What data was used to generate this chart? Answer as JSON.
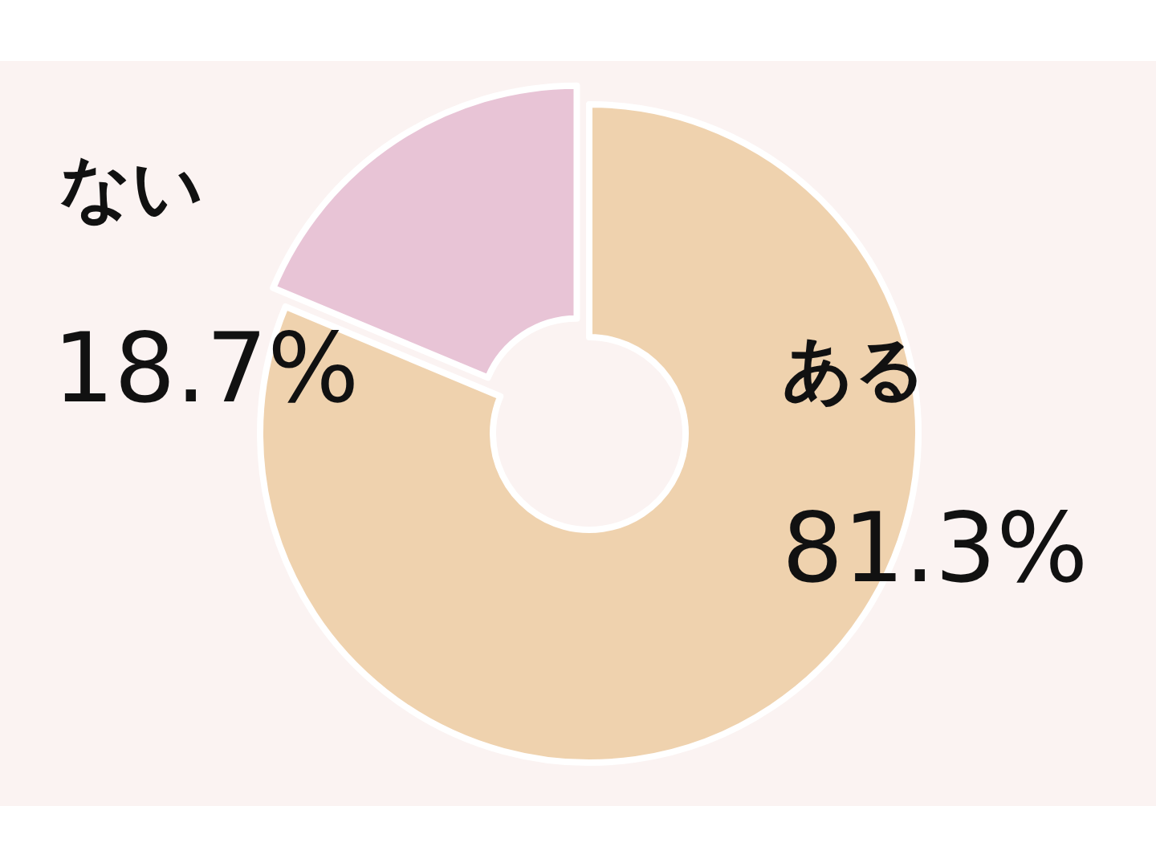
{
  "chart_data": {
    "type": "donut",
    "categories": [
      "ある",
      "ない"
    ],
    "values": [
      81.3,
      18.7
    ],
    "colors": [
      "#efd2ae",
      "#e8c4d6"
    ],
    "value_labels": [
      "81.3%",
      "18.7%"
    ]
  }
}
